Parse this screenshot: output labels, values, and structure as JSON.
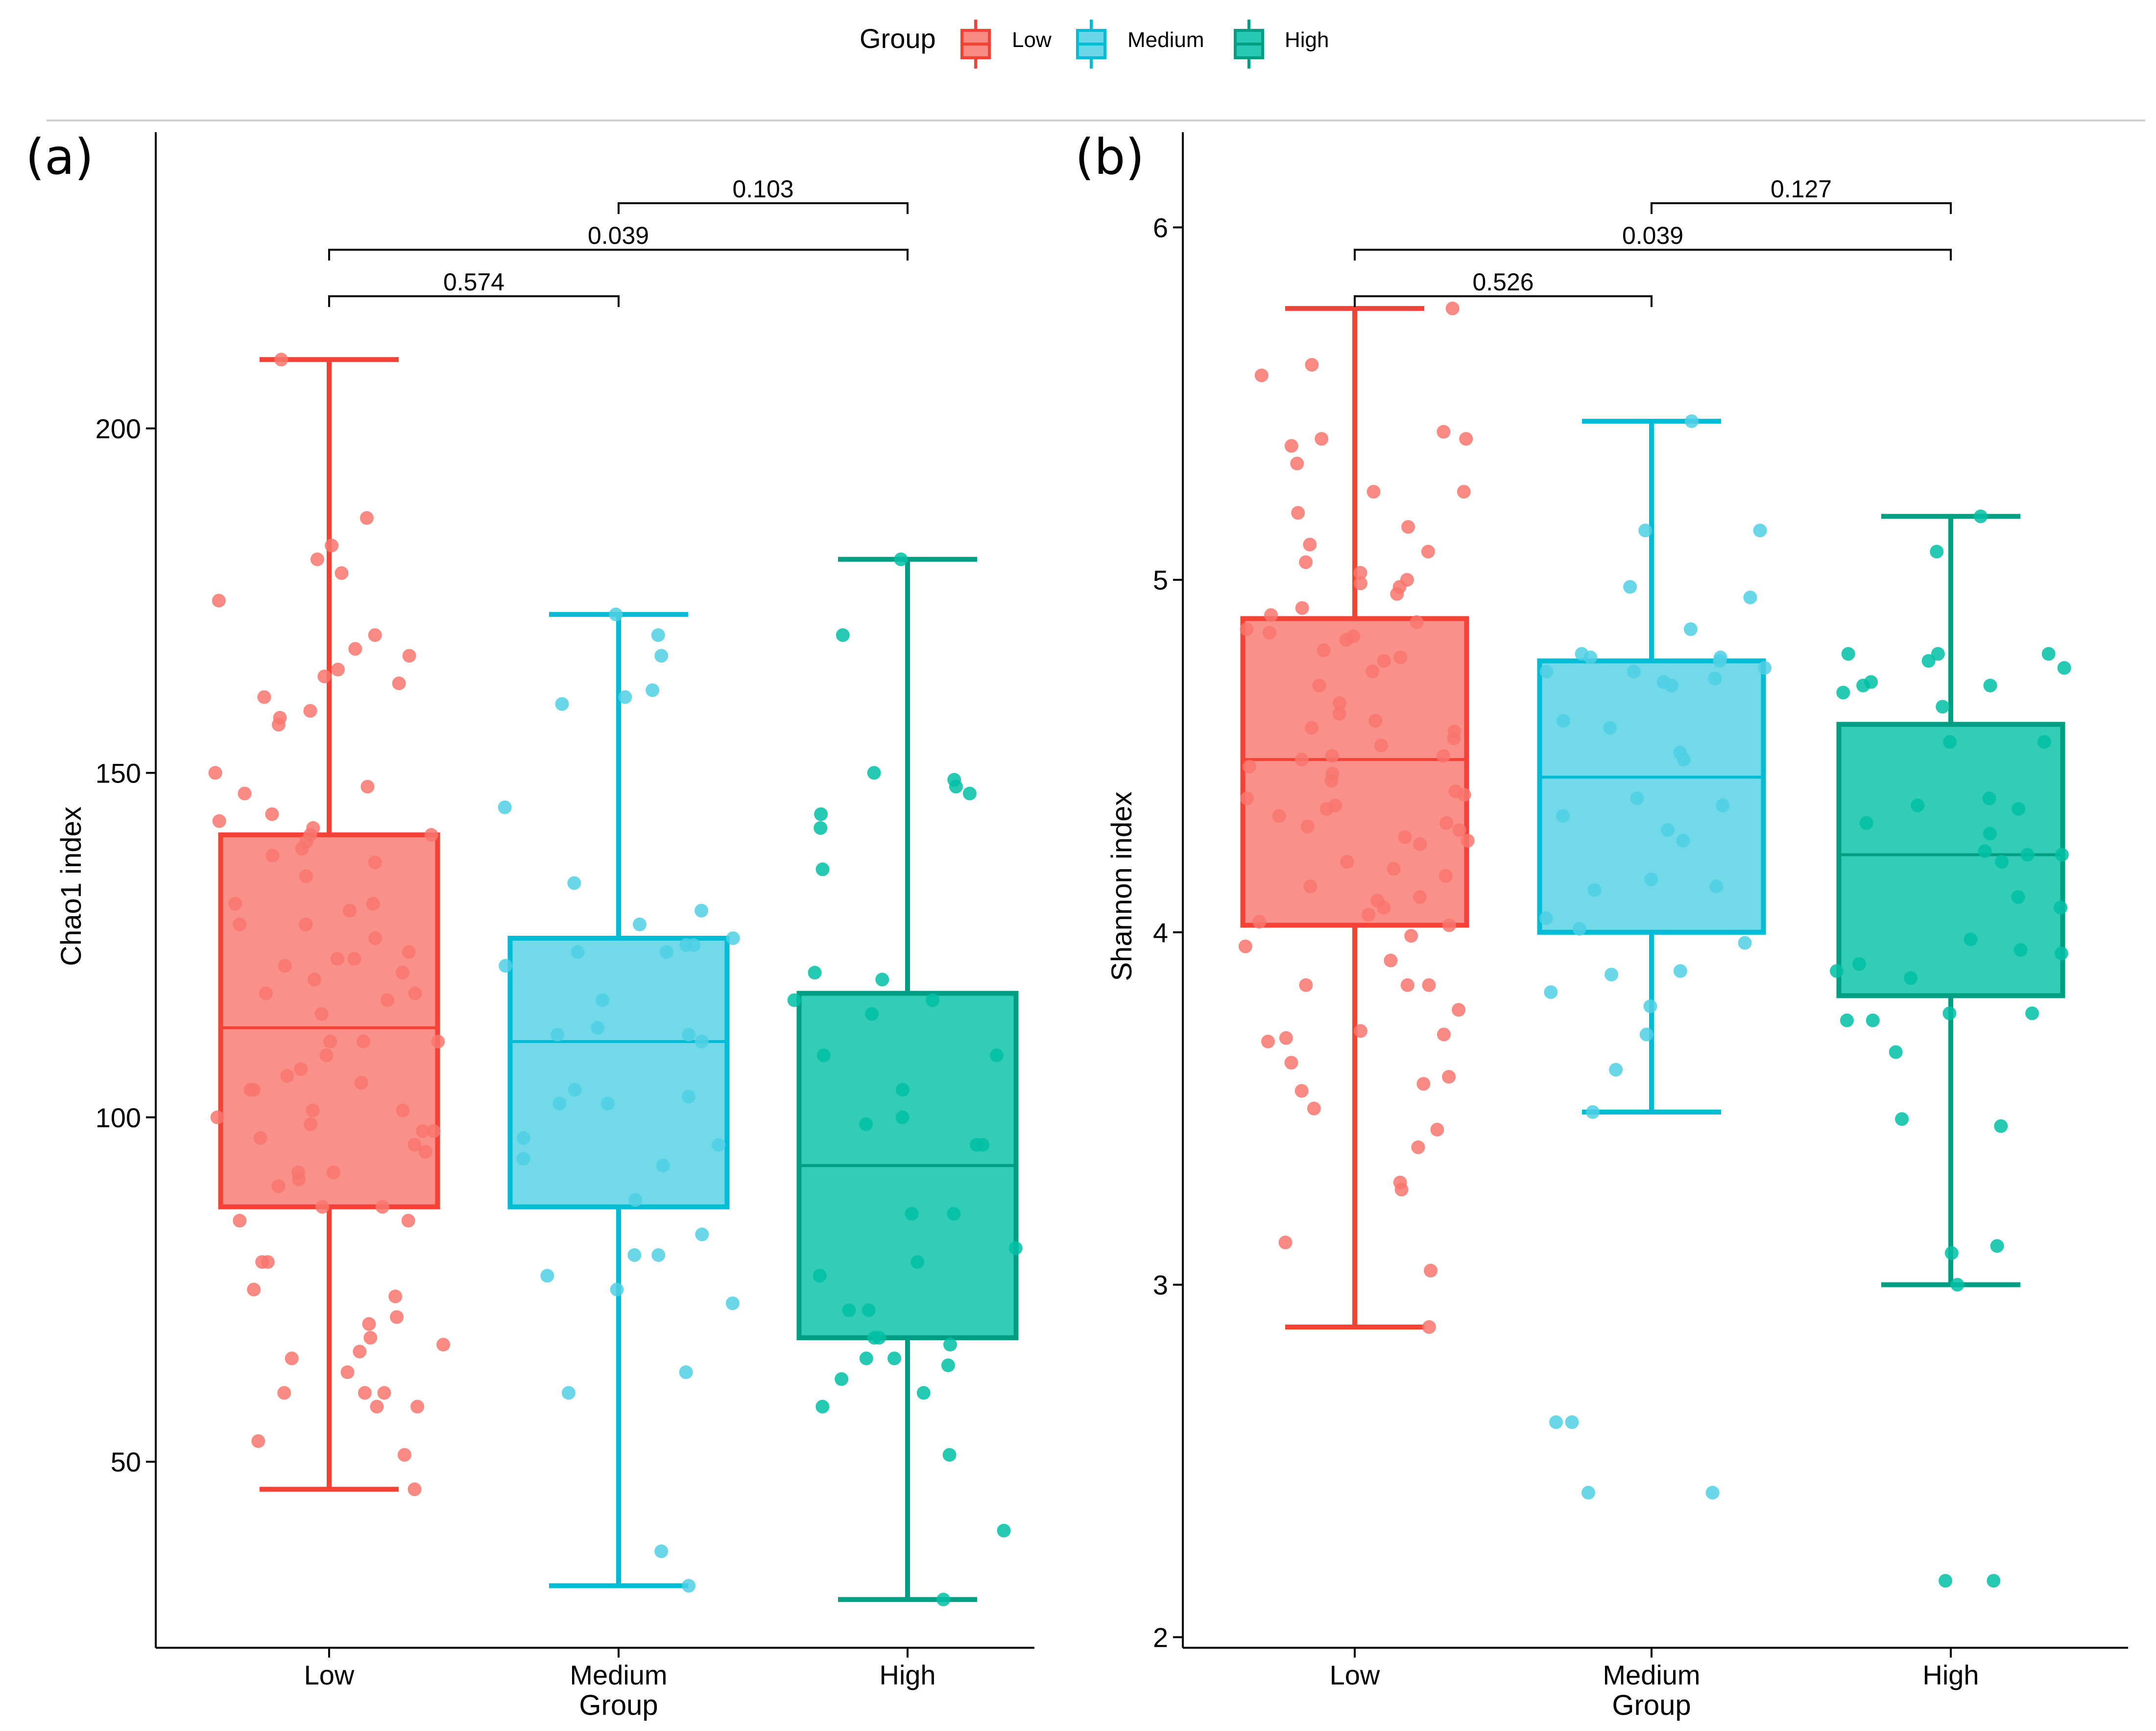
{
  "legend": {
    "title": "Group",
    "items": [
      {
        "label": "Low",
        "fill": "#F8766D",
        "stroke": "#F44336"
      },
      {
        "label": "Medium",
        "fill": "#4FD0E4",
        "stroke": "#00BCD4"
      },
      {
        "label": "High",
        "fill": "#00BFA5",
        "stroke": "#009E83"
      }
    ]
  },
  "chart_data": [
    {
      "type": "box",
      "panel_label": "(a)",
      "xlabel": "Group",
      "ylabel": "Chao1 index",
      "categories": [
        "Low",
        "Medium",
        "High"
      ],
      "ylim": [
        23,
        243
      ],
      "yticks": [
        50,
        100,
        150,
        200
      ],
      "boxes": [
        {
          "category": "Low",
          "min": 46,
          "q1": 87,
          "median": 113,
          "q3": 141,
          "max": 210
        },
        {
          "category": "Medium",
          "min": 32,
          "q1": 87,
          "median": 111,
          "q3": 126,
          "max": 173
        },
        {
          "category": "High",
          "min": 30,
          "q1": 68,
          "median": 93,
          "q3": 118,
          "max": 181
        }
      ],
      "points": [
        [
          60,
          60,
          66,
          67,
          68,
          70,
          75,
          58,
          58,
          51,
          60,
          65,
          71,
          53,
          63,
          79,
          79,
          74,
          46,
          85,
          85,
          87,
          87,
          92,
          90,
          91,
          95,
          96,
          99,
          101,
          101,
          104,
          104,
          106,
          107,
          111,
          111,
          115,
          117,
          118,
          120,
          118,
          121,
          122,
          123,
          124,
          126,
          128,
          130,
          131,
          131,
          135,
          137,
          138,
          139,
          140,
          141,
          141,
          142,
          143,
          144,
          147,
          148,
          150,
          158,
          157,
          159,
          161,
          163,
          164,
          165,
          167,
          168,
          170,
          175,
          179,
          181,
          183,
          187,
          210,
          109,
          98,
          97,
          92,
          98,
          123,
          100,
          105,
          111,
          128
        ],
        [
          32,
          37,
          60,
          63,
          73,
          75,
          77,
          80,
          80,
          83,
          88,
          93,
          94,
          96,
          97,
          102,
          102,
          103,
          104,
          111,
          112,
          112,
          113,
          117,
          122,
          124,
          124,
          125,
          125,
          126,
          128,
          130,
          134,
          145,
          160,
          161,
          162,
          167,
          170,
          173
        ],
        [
          30,
          40,
          51,
          58,
          60,
          62,
          64,
          65,
          65,
          67,
          68,
          68,
          72,
          72,
          77,
          79,
          81,
          86,
          86,
          96,
          96,
          99,
          100,
          104,
          109,
          109,
          115,
          117,
          117,
          120,
          121,
          136,
          142,
          144,
          147,
          148,
          149,
          150,
          170,
          181
        ]
      ],
      "comparisons": [
        {
          "from": "Low",
          "to": "Medium",
          "label": "0.574"
        },
        {
          "from": "Low",
          "to": "High",
          "label": "0.039"
        },
        {
          "from": "Medium",
          "to": "High",
          "label": "0.103"
        }
      ]
    },
    {
      "type": "box",
      "panel_label": "(b)",
      "xlabel": "Group",
      "ylabel": "Shannon index",
      "categories": [
        "Low",
        "Medium",
        "High"
      ],
      "ylim": [
        1.97,
        6.27
      ],
      "yticks": [
        2,
        3,
        4,
        5,
        6
      ],
      "boxes": [
        {
          "category": "Low",
          "min": 2.88,
          "q1": 4.02,
          "median": 4.49,
          "q3": 4.89,
          "max": 5.77
        },
        {
          "category": "Medium",
          "min": 3.49,
          "q1": 4.0,
          "median": 4.44,
          "q3": 4.77,
          "max": 5.45
        },
        {
          "category": "High",
          "min": 3.0,
          "q1": 3.82,
          "median": 4.22,
          "q3": 4.59,
          "max": 5.18
        }
      ],
      "points": [
        [
          5.77,
          5.61,
          5.58,
          5.42,
          5.4,
          5.4,
          5.38,
          5.33,
          5.25,
          5.25,
          5.19,
          5.15,
          5.1,
          5.08,
          5.05,
          5.02,
          5.0,
          4.99,
          4.98,
          4.96,
          4.92,
          4.9,
          4.88,
          4.86,
          4.85,
          4.84,
          4.83,
          4.8,
          4.78,
          4.77,
          4.74,
          4.7,
          4.65,
          4.62,
          4.6,
          4.58,
          4.57,
          4.55,
          4.53,
          4.5,
          4.5,
          4.49,
          4.47,
          4.45,
          4.43,
          4.4,
          4.39,
          4.38,
          4.36,
          4.35,
          4.33,
          4.31,
          4.3,
          4.29,
          4.27,
          4.26,
          4.25,
          4.2,
          4.18,
          4.16,
          4.13,
          4.1,
          4.09,
          4.07,
          4.05,
          4.03,
          4.02,
          3.99,
          3.96,
          3.92,
          3.85,
          3.85,
          3.85,
          3.78,
          3.72,
          3.71,
          3.7,
          3.69,
          3.63,
          3.59,
          3.57,
          3.55,
          3.5,
          3.44,
          3.39,
          3.29,
          3.27,
          3.12,
          3.04,
          2.88
        ],
        [
          2.41,
          2.41,
          2.61,
          2.61,
          3.49,
          3.61,
          3.71,
          3.79,
          3.83,
          3.88,
          3.89,
          3.97,
          4.01,
          4.04,
          4.12,
          4.13,
          4.15,
          4.26,
          4.29,
          4.33,
          4.36,
          4.38,
          4.49,
          4.51,
          4.58,
          4.6,
          4.7,
          4.71,
          4.72,
          4.74,
          4.74,
          4.75,
          4.77,
          4.78,
          4.78,
          4.79,
          4.86,
          4.95,
          4.98,
          5.14,
          5.14,
          5.45
        ],
        [
          2.16,
          2.16,
          3.0,
          3.09,
          3.11,
          3.45,
          3.47,
          3.66,
          3.75,
          3.75,
          3.77,
          3.77,
          3.87,
          3.89,
          3.91,
          3.94,
          3.95,
          3.98,
          4.07,
          4.1,
          4.2,
          4.22,
          4.22,
          4.23,
          4.28,
          4.31,
          4.35,
          4.36,
          4.38,
          4.54,
          4.54,
          4.64,
          4.68,
          4.7,
          4.7,
          4.71,
          4.75,
          4.77,
          4.79,
          4.79,
          4.79,
          5.08,
          5.18
        ]
      ],
      "comparisons": [
        {
          "from": "Low",
          "to": "Medium",
          "label": "0.526"
        },
        {
          "from": "Low",
          "to": "High",
          "label": "0.039"
        },
        {
          "from": "Medium",
          "to": "High",
          "label": "0.127"
        }
      ]
    }
  ]
}
